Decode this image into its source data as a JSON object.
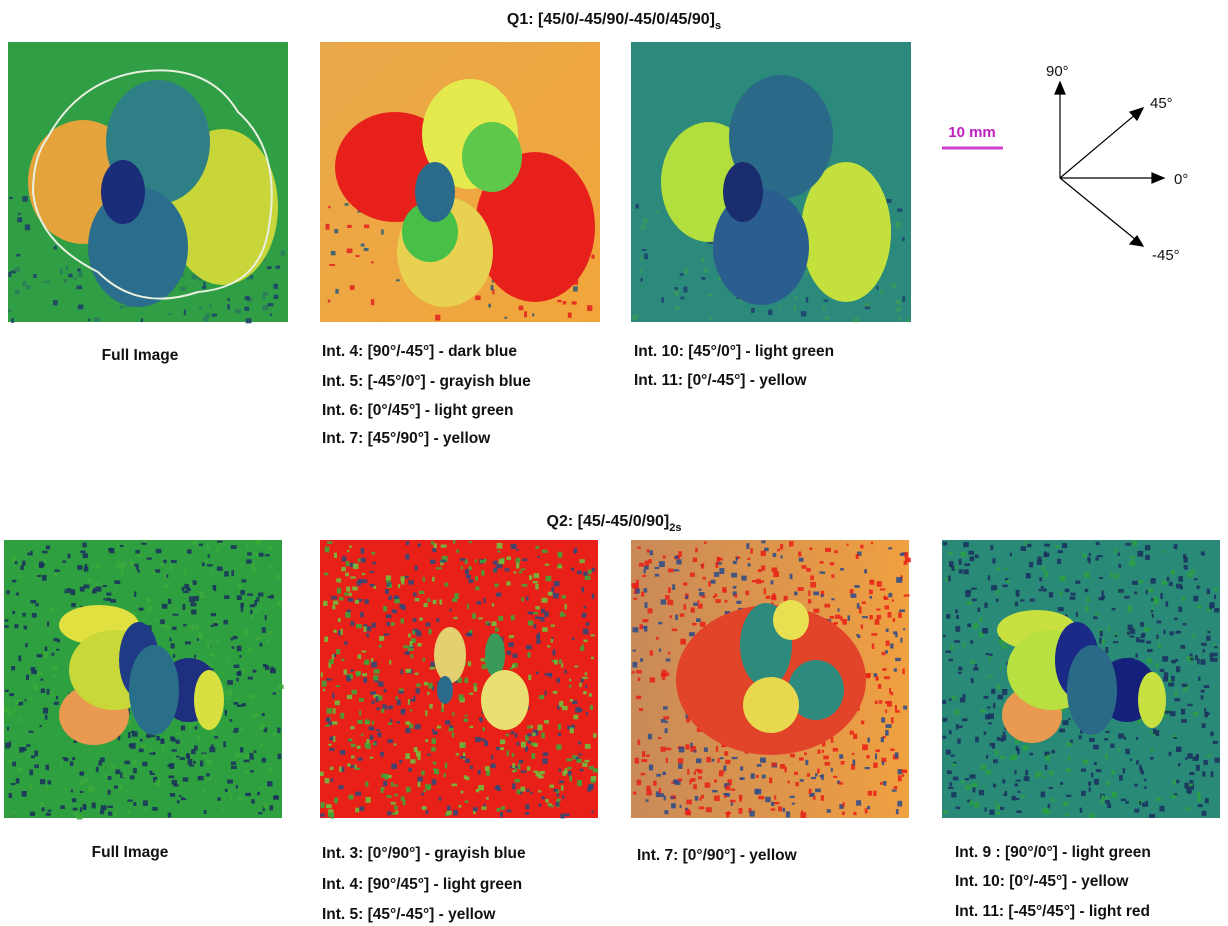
{
  "q1": {
    "title": "Q1: [45/0/-45/90/-45/0/45/90]",
    "title_sub": "s",
    "panels": [
      {
        "captions": [
          "Full Image"
        ]
      },
      {
        "captions": [
          "Int. 4: [90°/-45°] - dark blue",
          "Int. 5: [-45°/0°] - grayish blue",
          "Int. 6: [0°/45°] - light green",
          "Int. 7: [45°/90°] - yellow"
        ]
      },
      {
        "captions": [
          "Int. 10: [45°/0°] - light green",
          "Int. 11: [0°/-45°] - yellow"
        ]
      }
    ]
  },
  "scale_bar": "10 mm",
  "orientation": {
    "labels": [
      "90°",
      "45°",
      "0°",
      "-45°"
    ]
  },
  "q2": {
    "title": "Q2: [45/-45/0/90]",
    "title_sub": "2s",
    "panels": [
      {
        "captions": [
          "Full Image"
        ]
      },
      {
        "captions": [
          "Int. 3: [0°/90°] - grayish blue",
          "Int. 4: [90°/45°] - light green",
          "Int. 5: [45°/-45°] - yellow"
        ]
      },
      {
        "captions": [
          "Int. 7: [0°/90°] - yellow"
        ]
      },
      {
        "captions": [
          "Int. 9  : [90°/0°] - light green",
          "Int. 10: [0°/-45°] - yellow",
          "Int. 11: [-45°/45°] - light red"
        ]
      }
    ]
  }
}
